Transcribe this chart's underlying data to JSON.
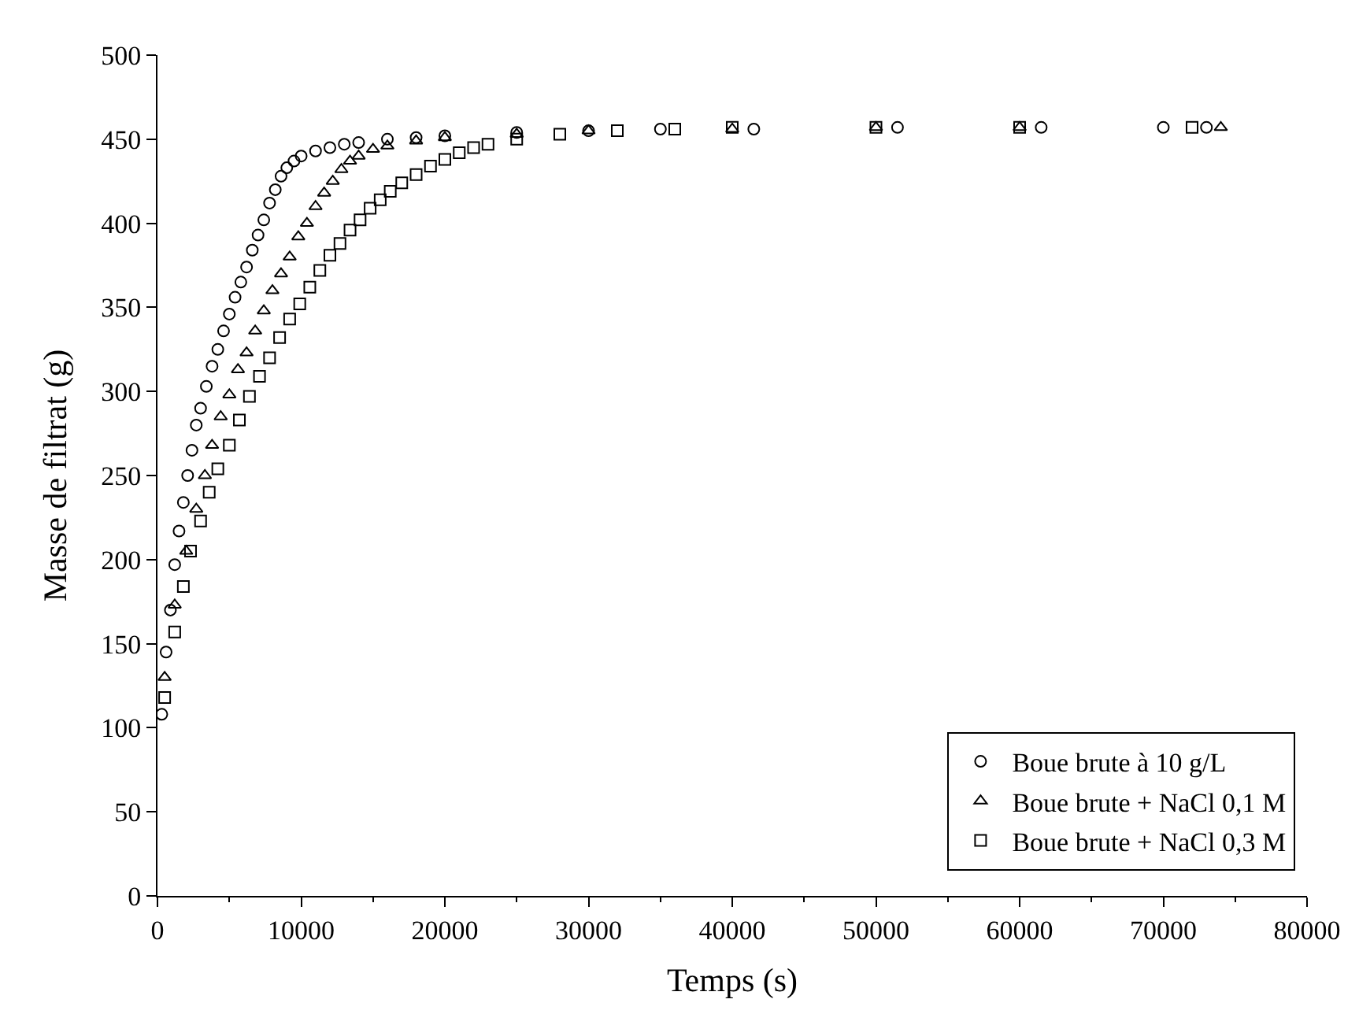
{
  "chart_data": {
    "type": "scatter",
    "xlabel": "Temps (s)",
    "ylabel": "Masse de filtrat (g)",
    "xlim": [
      0,
      80000
    ],
    "xticks": [
      0,
      10000,
      20000,
      30000,
      40000,
      50000,
      60000,
      70000,
      80000
    ],
    "ylim": [
      0,
      500
    ],
    "yticks": [
      0,
      50,
      100,
      150,
      200,
      250,
      300,
      350,
      400,
      450,
      500
    ],
    "legend": "bottom right",
    "series": [
      {
        "name": "Boue brute à 10 g/L",
        "color": "#000000",
        "marker": "circle",
        "x": [
          300,
          600,
          900,
          1200,
          1500,
          1800,
          2100,
          2400,
          2700,
          3000,
          3400,
          3800,
          4200,
          4600,
          5000,
          5400,
          5800,
          6200,
          6600,
          7000,
          7400,
          7800,
          8200,
          8600,
          9000,
          9500,
          10000,
          11000,
          12000,
          13000,
          14000,
          16000,
          18000,
          20000,
          25000,
          30000,
          35000,
          41500,
          51500,
          61500,
          70000,
          73000
        ],
        "values": [
          108,
          145,
          170,
          197,
          217,
          234,
          250,
          265,
          280,
          290,
          303,
          315,
          325,
          336,
          346,
          356,
          365,
          374,
          384,
          393,
          402,
          412,
          420,
          428,
          433,
          437,
          440,
          443,
          445,
          447,
          448,
          450,
          451,
          452,
          454,
          455,
          456,
          456,
          457,
          457,
          457,
          457
        ]
      },
      {
        "name": "Boue brute + NaCl 0,1 M",
        "color": "#000000",
        "marker": "triangle",
        "x": [
          500,
          1200,
          2000,
          2700,
          3300,
          3800,
          4400,
          5000,
          5600,
          6200,
          6800,
          7400,
          8000,
          8600,
          9200,
          9800,
          10400,
          11000,
          11600,
          12200,
          12800,
          13400,
          14000,
          15000,
          16000,
          18000,
          20000,
          25000,
          30000,
          40000,
          50000,
          60000,
          74000
        ],
        "values": [
          130,
          173,
          205,
          230,
          250,
          268,
          285,
          298,
          313,
          323,
          336,
          348,
          360,
          370,
          380,
          392,
          400,
          410,
          418,
          425,
          432,
          437,
          440,
          444,
          446,
          449,
          451,
          453,
          455,
          456,
          457,
          457,
          457
        ]
      },
      {
        "name": "Boue brute + NaCl 0,3 M",
        "color": "#000000",
        "marker": "square",
        "x": [
          500,
          1200,
          1800,
          2300,
          3000,
          3600,
          4200,
          5000,
          5700,
          6400,
          7100,
          7800,
          8500,
          9200,
          9900,
          10600,
          11300,
          12000,
          12700,
          13400,
          14100,
          14800,
          15500,
          16200,
          17000,
          18000,
          19000,
          20000,
          21000,
          22000,
          23000,
          25000,
          28000,
          32000,
          36000,
          40000,
          50000,
          60000,
          72000
        ],
        "values": [
          118,
          157,
          184,
          205,
          223,
          240,
          254,
          268,
          283,
          297,
          309,
          320,
          332,
          343,
          352,
          362,
          372,
          381,
          388,
          396,
          402,
          409,
          414,
          419,
          424,
          429,
          434,
          438,
          442,
          445,
          447,
          450,
          453,
          455,
          456,
          457,
          457,
          457,
          457
        ]
      }
    ]
  }
}
